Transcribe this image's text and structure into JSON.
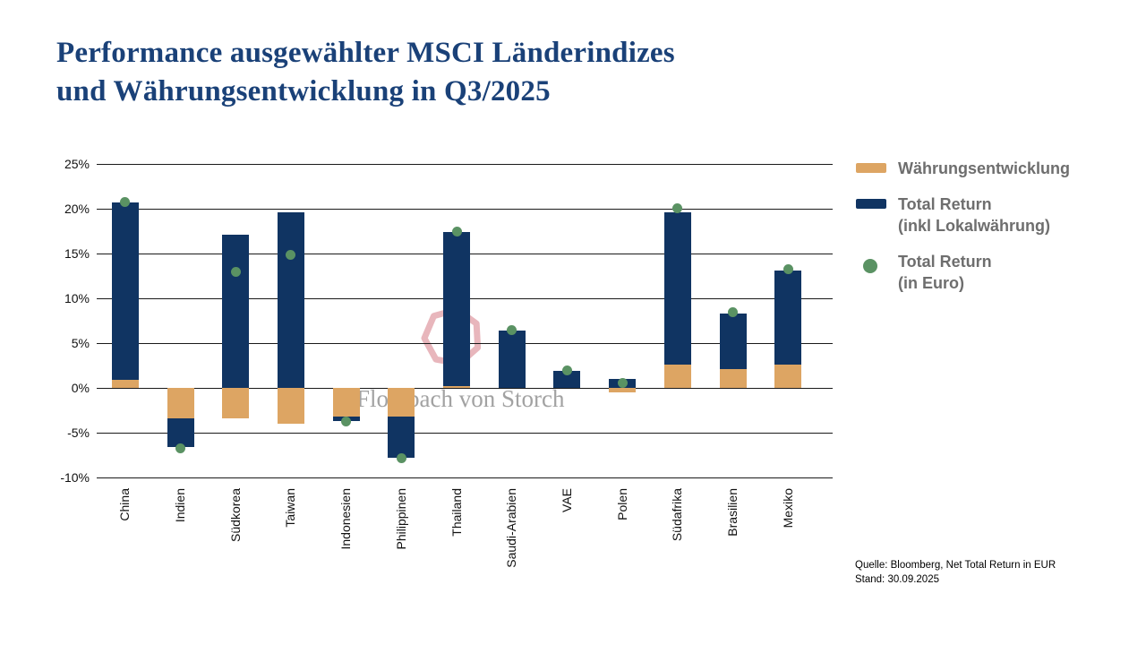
{
  "page": {
    "title": "Performance ausgewählter MSCI Länderindizes\nund Währungsentwicklung in Q3/2025",
    "title_color": "#1A4178",
    "watermark": {
      "text": "Flossbach von Storch",
      "ring_color": "#E8B6BC",
      "text_color": "#A2A2A2"
    },
    "source": {
      "line1": "Quelle: Bloomberg, Net Total Return in EUR",
      "line2": "Stand: 30.09.2025"
    }
  },
  "legend": {
    "text_color": "#6E6E6E",
    "items": [
      {
        "label": "Währungsentwicklung",
        "swatch": "bar",
        "color": "#DDA563"
      },
      {
        "label": "Total Return\n(inkl Lokalwährung)",
        "swatch": "bar",
        "color": "#103462"
      },
      {
        "label": "Total Return\n(in Euro)",
        "swatch": "dot",
        "color": "#5A9263"
      }
    ]
  },
  "chart_data": {
    "type": "bar",
    "stacked": true,
    "grid": true,
    "legend_position": "right",
    "title": "Performance ausgewählter MSCI Länderindizes und Währungsentwicklung in Q3/2025",
    "xlabel": "",
    "ylabel": "",
    "ylim": [
      -10,
      25
    ],
    "ytick_values": [
      25,
      20,
      15,
      10,
      5,
      0,
      -5,
      -10
    ],
    "ytick_labels": [
      "25%",
      "20%",
      "15%",
      "10%",
      "5%",
      "0%",
      "-5%",
      "-10%"
    ],
    "categories": [
      "China",
      "Indien",
      "Südkorea",
      "Taiwan",
      "Indonesien",
      "Philippinen",
      "Thailand",
      "Saudi-Arabien",
      "VAE",
      "Polen",
      "Südafrika",
      "Brasilien",
      "Mexiko"
    ],
    "series": [
      {
        "name": "Währungsentwicklung",
        "type": "bar",
        "color": "#DDA563",
        "values": [
          0.9,
          -3.4,
          -3.4,
          -4.0,
          -3.2,
          -3.2,
          0.2,
          0.0,
          0.0,
          -0.5,
          2.6,
          2.1,
          2.6
        ]
      },
      {
        "name": "Total Return (inkl Lokalwährung)",
        "type": "bar",
        "color": "#103462",
        "values": [
          19.8,
          -3.2,
          17.1,
          19.6,
          -0.5,
          -4.6,
          17.2,
          6.4,
          1.9,
          1.0,
          17.0,
          6.2,
          10.5
        ]
      },
      {
        "name": "Total Return (in Euro)",
        "type": "point",
        "color": "#5A9263",
        "values": [
          20.8,
          -6.7,
          13.0,
          14.9,
          -3.7,
          -7.8,
          17.5,
          6.5,
          2.0,
          0.6,
          20.1,
          8.5,
          13.3
        ]
      }
    ]
  }
}
